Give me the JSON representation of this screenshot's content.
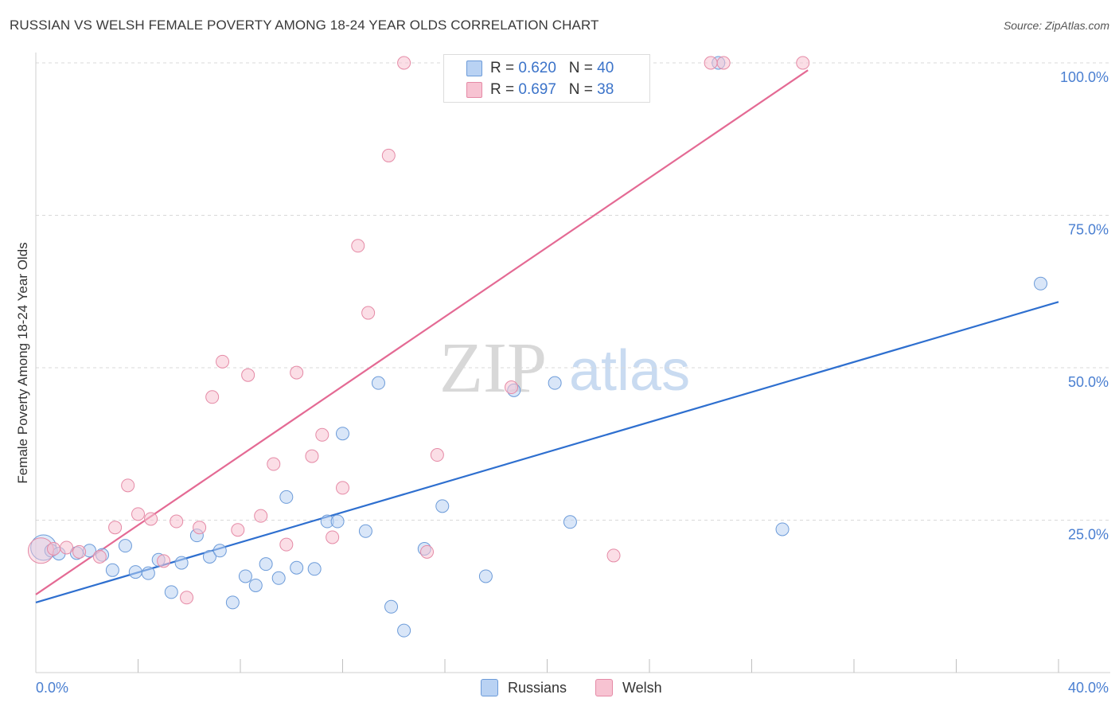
{
  "title": "RUSSIAN VS WELSH FEMALE POVERTY AMONG 18-24 YEAR OLDS CORRELATION CHART",
  "source": "Source: ZipAtlas.com",
  "watermark": {
    "zip": "ZIP",
    "atlas": "atlas"
  },
  "legend": [
    {
      "r_label": "R =",
      "r_value": "0.620",
      "n_label": "N =",
      "n_value": "40"
    },
    {
      "r_label": "R =",
      "r_value": "0.697",
      "n_label": "N =",
      "n_value": "38"
    }
  ],
  "bottom_legend": {
    "russians": "Russians",
    "welsh": "Welsh"
  },
  "colors": {
    "russians_fill": "#b9d2f3",
    "russians_stroke": "#6c9bd9",
    "russians_line": "#2e6fcf",
    "welsh_fill": "#f7c3d2",
    "welsh_stroke": "#e58aa6",
    "welsh_line": "#e46a94",
    "tick_label": "#4a7fd1",
    "grid": "#d9d9d9"
  },
  "chart_data": {
    "type": "scatter",
    "ylabel": "Female Poverty Among 18-24 Year Olds",
    "xlabel": "",
    "x_tick_labels": [
      "0.0%",
      "40.0%"
    ],
    "y_tick_labels": [
      "25.0%",
      "50.0%",
      "75.0%",
      "100.0%"
    ],
    "xlim": [
      0,
      40
    ],
    "ylim": [
      0,
      102
    ],
    "y_ticks": [
      25,
      50,
      75,
      100
    ],
    "x_minor_ticks": [
      4,
      8,
      12,
      16,
      20,
      24,
      28,
      32,
      36
    ],
    "grid": true,
    "series": [
      {
        "name": "Russians",
        "points": [
          [
            0.3,
            20.5
          ],
          [
            0.6,
            20.0
          ],
          [
            0.9,
            19.5
          ],
          [
            1.6,
            19.6
          ],
          [
            2.1,
            20.0
          ],
          [
            2.6,
            19.3
          ],
          [
            3.0,
            16.8
          ],
          [
            3.5,
            20.8
          ],
          [
            3.9,
            16.5
          ],
          [
            4.4,
            16.3
          ],
          [
            4.8,
            18.5
          ],
          [
            5.3,
            13.2
          ],
          [
            5.7,
            18.0
          ],
          [
            6.3,
            22.5
          ],
          [
            6.8,
            19.0
          ],
          [
            7.2,
            20.0
          ],
          [
            7.7,
            11.5
          ],
          [
            8.2,
            15.8
          ],
          [
            8.6,
            14.3
          ],
          [
            9.0,
            17.8
          ],
          [
            9.5,
            15.5
          ],
          [
            9.8,
            28.8
          ],
          [
            10.2,
            17.2
          ],
          [
            10.9,
            17.0
          ],
          [
            11.4,
            24.8
          ],
          [
            11.8,
            24.8
          ],
          [
            12.0,
            39.2
          ],
          [
            12.9,
            23.2
          ],
          [
            13.4,
            47.5
          ],
          [
            13.9,
            10.8
          ],
          [
            14.4,
            6.9
          ],
          [
            15.2,
            20.3
          ],
          [
            15.9,
            27.3
          ],
          [
            17.6,
            15.8
          ],
          [
            18.7,
            46.3
          ],
          [
            20.3,
            47.5
          ],
          [
            20.9,
            24.7
          ],
          [
            26.7,
            100.0
          ],
          [
            29.2,
            23.5
          ],
          [
            39.3,
            63.8
          ]
        ]
      },
      {
        "name": "Welsh",
        "points": [
          [
            0.2,
            20.0
          ],
          [
            0.7,
            20.3
          ],
          [
            1.2,
            20.5
          ],
          [
            1.7,
            19.8
          ],
          [
            2.5,
            19.0
          ],
          [
            3.1,
            23.8
          ],
          [
            3.6,
            30.7
          ],
          [
            4.0,
            26.0
          ],
          [
            4.5,
            25.2
          ],
          [
            5.0,
            18.3
          ],
          [
            5.5,
            24.8
          ],
          [
            5.9,
            12.3
          ],
          [
            6.4,
            23.8
          ],
          [
            6.9,
            45.2
          ],
          [
            7.3,
            51.0
          ],
          [
            7.9,
            23.4
          ],
          [
            8.3,
            48.8
          ],
          [
            8.8,
            25.7
          ],
          [
            9.3,
            34.2
          ],
          [
            9.8,
            21.0
          ],
          [
            10.2,
            49.2
          ],
          [
            10.8,
            35.5
          ],
          [
            11.2,
            39.0
          ],
          [
            11.6,
            22.2
          ],
          [
            12.0,
            30.3
          ],
          [
            12.6,
            70.0
          ],
          [
            13.0,
            59.0
          ],
          [
            13.8,
            84.8
          ],
          [
            14.4,
            100.0
          ],
          [
            15.3,
            19.8
          ],
          [
            15.7,
            35.7
          ],
          [
            18.6,
            46.8
          ],
          [
            19.6,
            100.0
          ],
          [
            20.6,
            100.0
          ],
          [
            22.6,
            19.2
          ],
          [
            26.4,
            100.0
          ],
          [
            26.9,
            100.0
          ],
          [
            30.0,
            100.0
          ]
        ]
      }
    ],
    "trendlines": [
      {
        "series": "Russians",
        "from": [
          0,
          11.5
        ],
        "to": [
          40,
          60.8
        ]
      },
      {
        "series": "Welsh",
        "from": [
          0,
          12.8
        ],
        "to": [
          30.2,
          98.8
        ]
      }
    ]
  }
}
